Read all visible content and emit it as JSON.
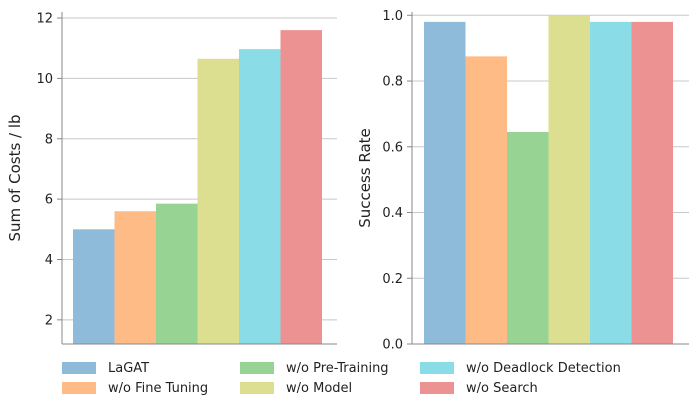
{
  "chart_data": [
    {
      "type": "bar",
      "ylabel": "Sum of Costs / lb",
      "xlabel": "",
      "ylim": [
        1.2,
        12.2
      ],
      "yticks": [
        2,
        4,
        6,
        8,
        10,
        12
      ],
      "ytick_labels": [
        "2",
        "4",
        "6",
        "8",
        "10",
        "12"
      ],
      "grid": true,
      "series": [
        {
          "name": "LaGAT",
          "value": 5.0
        },
        {
          "name": "w/o Fine Tuning",
          "value": 5.6
        },
        {
          "name": "w/o Pre-Training",
          "value": 5.85
        },
        {
          "name": "w/o Model",
          "value": 10.65
        },
        {
          "name": "w/o Deadlock Detection",
          "value": 10.97
        },
        {
          "name": "w/o Search",
          "value": 11.6
        }
      ]
    },
    {
      "type": "bar",
      "ylabel": "Success Rate",
      "xlabel": "",
      "ylim": [
        0.0,
        1.01
      ],
      "yticks": [
        0.0,
        0.2,
        0.4,
        0.6,
        0.8,
        1.0
      ],
      "ytick_labels": [
        "0.0",
        "0.2",
        "0.4",
        "0.6",
        "0.8",
        "1.0"
      ],
      "grid": true,
      "series": [
        {
          "name": "LaGAT",
          "value": 0.98
        },
        {
          "name": "w/o Fine Tuning",
          "value": 0.875
        },
        {
          "name": "w/o Pre-Training",
          "value": 0.645
        },
        {
          "name": "w/o Model",
          "value": 1.0
        },
        {
          "name": "w/o Deadlock Detection",
          "value": 0.98
        },
        {
          "name": "w/o Search",
          "value": 0.98
        }
      ]
    }
  ],
  "legend": {
    "placement": "bottom",
    "items": [
      {
        "label": "LaGAT",
        "color": "#8fbbdb"
      },
      {
        "label": "w/o Fine Tuning",
        "color": "#ffbb85"
      },
      {
        "label": "w/o Pre-Training",
        "color": "#97d393"
      },
      {
        "label": "w/o Model",
        "color": "#dcdf90"
      },
      {
        "label": "w/o Deadlock Detection",
        "color": "#8adde7"
      },
      {
        "label": "w/o Search",
        "color": "#ed9292"
      }
    ]
  }
}
